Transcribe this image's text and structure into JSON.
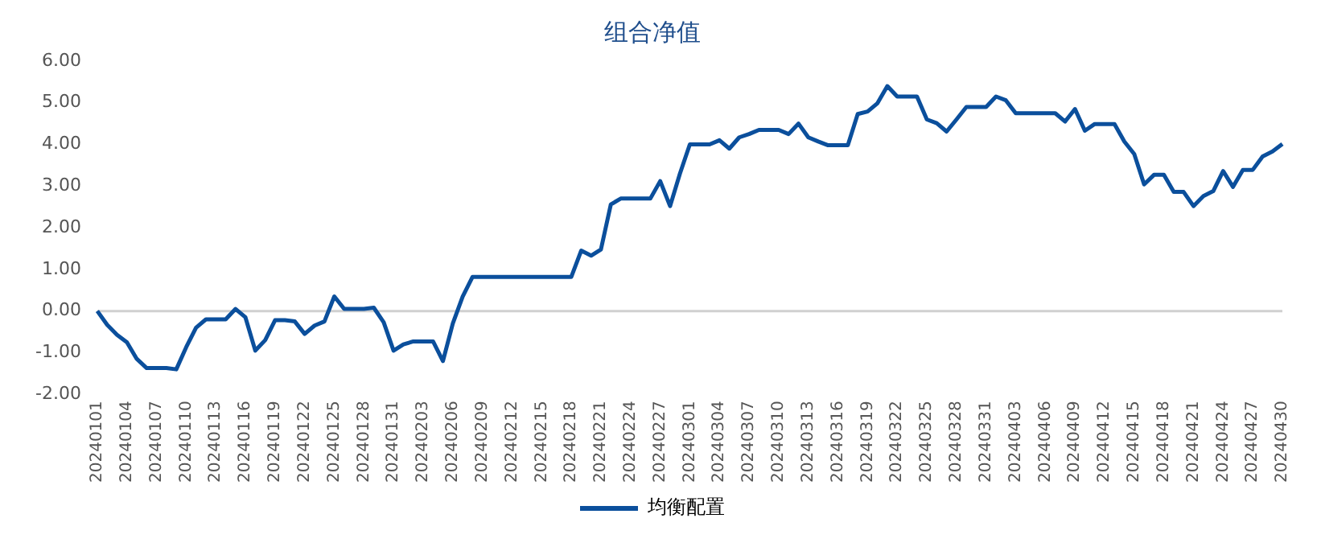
{
  "chart_data": {
    "type": "line",
    "title": "组合净值",
    "categories": [
      "20240101",
      null,
      null,
      "20240104",
      null,
      null,
      "20240107",
      null,
      null,
      "20240110",
      null,
      null,
      "20240113",
      null,
      null,
      "20240116",
      null,
      null,
      "20240119",
      null,
      null,
      "20240122",
      null,
      null,
      "20240125",
      null,
      null,
      "20240128",
      null,
      null,
      "20240131",
      null,
      null,
      "20240203",
      null,
      null,
      "20240206",
      null,
      null,
      "20240209",
      null,
      null,
      "20240212",
      null,
      null,
      "20240215",
      null,
      null,
      "20240218",
      null,
      null,
      "20240221",
      null,
      null,
      "20240224",
      null,
      null,
      "20240227",
      null,
      null,
      "20240301",
      null,
      null,
      "20240304",
      null,
      null,
      "20240307",
      null,
      null,
      "20240310",
      null,
      null,
      "20240313",
      null,
      null,
      "20240316",
      null,
      null,
      "20240319",
      null,
      null,
      "20240322",
      null,
      null,
      "20240325",
      null,
      null,
      "20240328",
      null,
      null,
      "20240331",
      null,
      null,
      "20240403",
      null,
      null,
      "20240406",
      null,
      null,
      "20240409",
      null,
      null,
      "20240412",
      null,
      null,
      "20240415",
      null,
      null,
      "20240418",
      null,
      null,
      "20240421",
      null,
      null,
      "20240424",
      null,
      null,
      "20240427",
      null,
      null,
      "20240430"
    ],
    "series": [
      {
        "name": "均衡配置",
        "color": "#0b4f9c",
        "values": [
          0,
          -0.33,
          -0.57,
          -0.75,
          -1.15,
          -1.37,
          -1.37,
          -1.37,
          -1.4,
          -0.87,
          -0.4,
          -0.2,
          -0.2,
          -0.2,
          0.05,
          -0.15,
          -0.95,
          -0.7,
          -0.22,
          -0.22,
          -0.25,
          -0.55,
          -0.35,
          -0.25,
          0.35,
          0.05,
          0.05,
          0.05,
          0.08,
          -0.27,
          -0.95,
          -0.8,
          -0.73,
          -0.73,
          -0.73,
          -1.2,
          -0.3,
          0.35,
          0.82,
          0.82,
          0.82,
          0.82,
          0.82,
          0.82,
          0.82,
          0.82,
          0.82,
          0.82,
          0.82,
          1.45,
          1.33,
          1.48,
          2.56,
          2.7,
          2.7,
          2.7,
          2.7,
          3.12,
          2.52,
          3.3,
          4.0,
          4.0,
          4.0,
          4.1,
          3.9,
          4.17,
          4.25,
          4.35,
          4.35,
          4.35,
          4.25,
          4.5,
          4.17,
          4.07,
          3.98,
          3.98,
          3.98,
          4.73,
          4.79,
          4.99,
          5.4,
          5.15,
          5.15,
          5.15,
          4.6,
          4.51,
          4.31,
          4.6,
          4.9,
          4.9,
          4.9,
          5.15,
          5.06,
          4.75,
          4.75,
          4.75,
          4.75,
          4.75,
          4.55,
          4.85,
          4.33,
          4.49,
          4.49,
          4.49,
          4.07,
          3.77,
          3.04,
          3.27,
          3.27,
          2.86,
          2.86,
          2.52,
          2.76,
          2.88,
          3.36,
          2.98,
          3.39,
          3.39,
          3.71,
          3.83,
          4.01
        ]
      }
    ],
    "ylim": [
      -2,
      6
    ],
    "yticks": [
      {
        "value": -2,
        "label": "-2.00"
      },
      {
        "value": -1,
        "label": "-1.00"
      },
      {
        "value": 0,
        "label": "0.00"
      },
      {
        "value": 1,
        "label": "1.00"
      },
      {
        "value": 2,
        "label": "2.00"
      },
      {
        "value": 3,
        "label": "3.00"
      },
      {
        "value": 4,
        "label": "4.00"
      },
      {
        "value": 5,
        "label": "5.00"
      },
      {
        "value": 6,
        "label": "6.00"
      }
    ],
    "ref_lines": [
      {
        "axis": "y",
        "value": 0,
        "color": "#d0d0d0"
      }
    ],
    "grid": false,
    "legend": "bottom",
    "marker": "none",
    "line_style": "solid"
  }
}
